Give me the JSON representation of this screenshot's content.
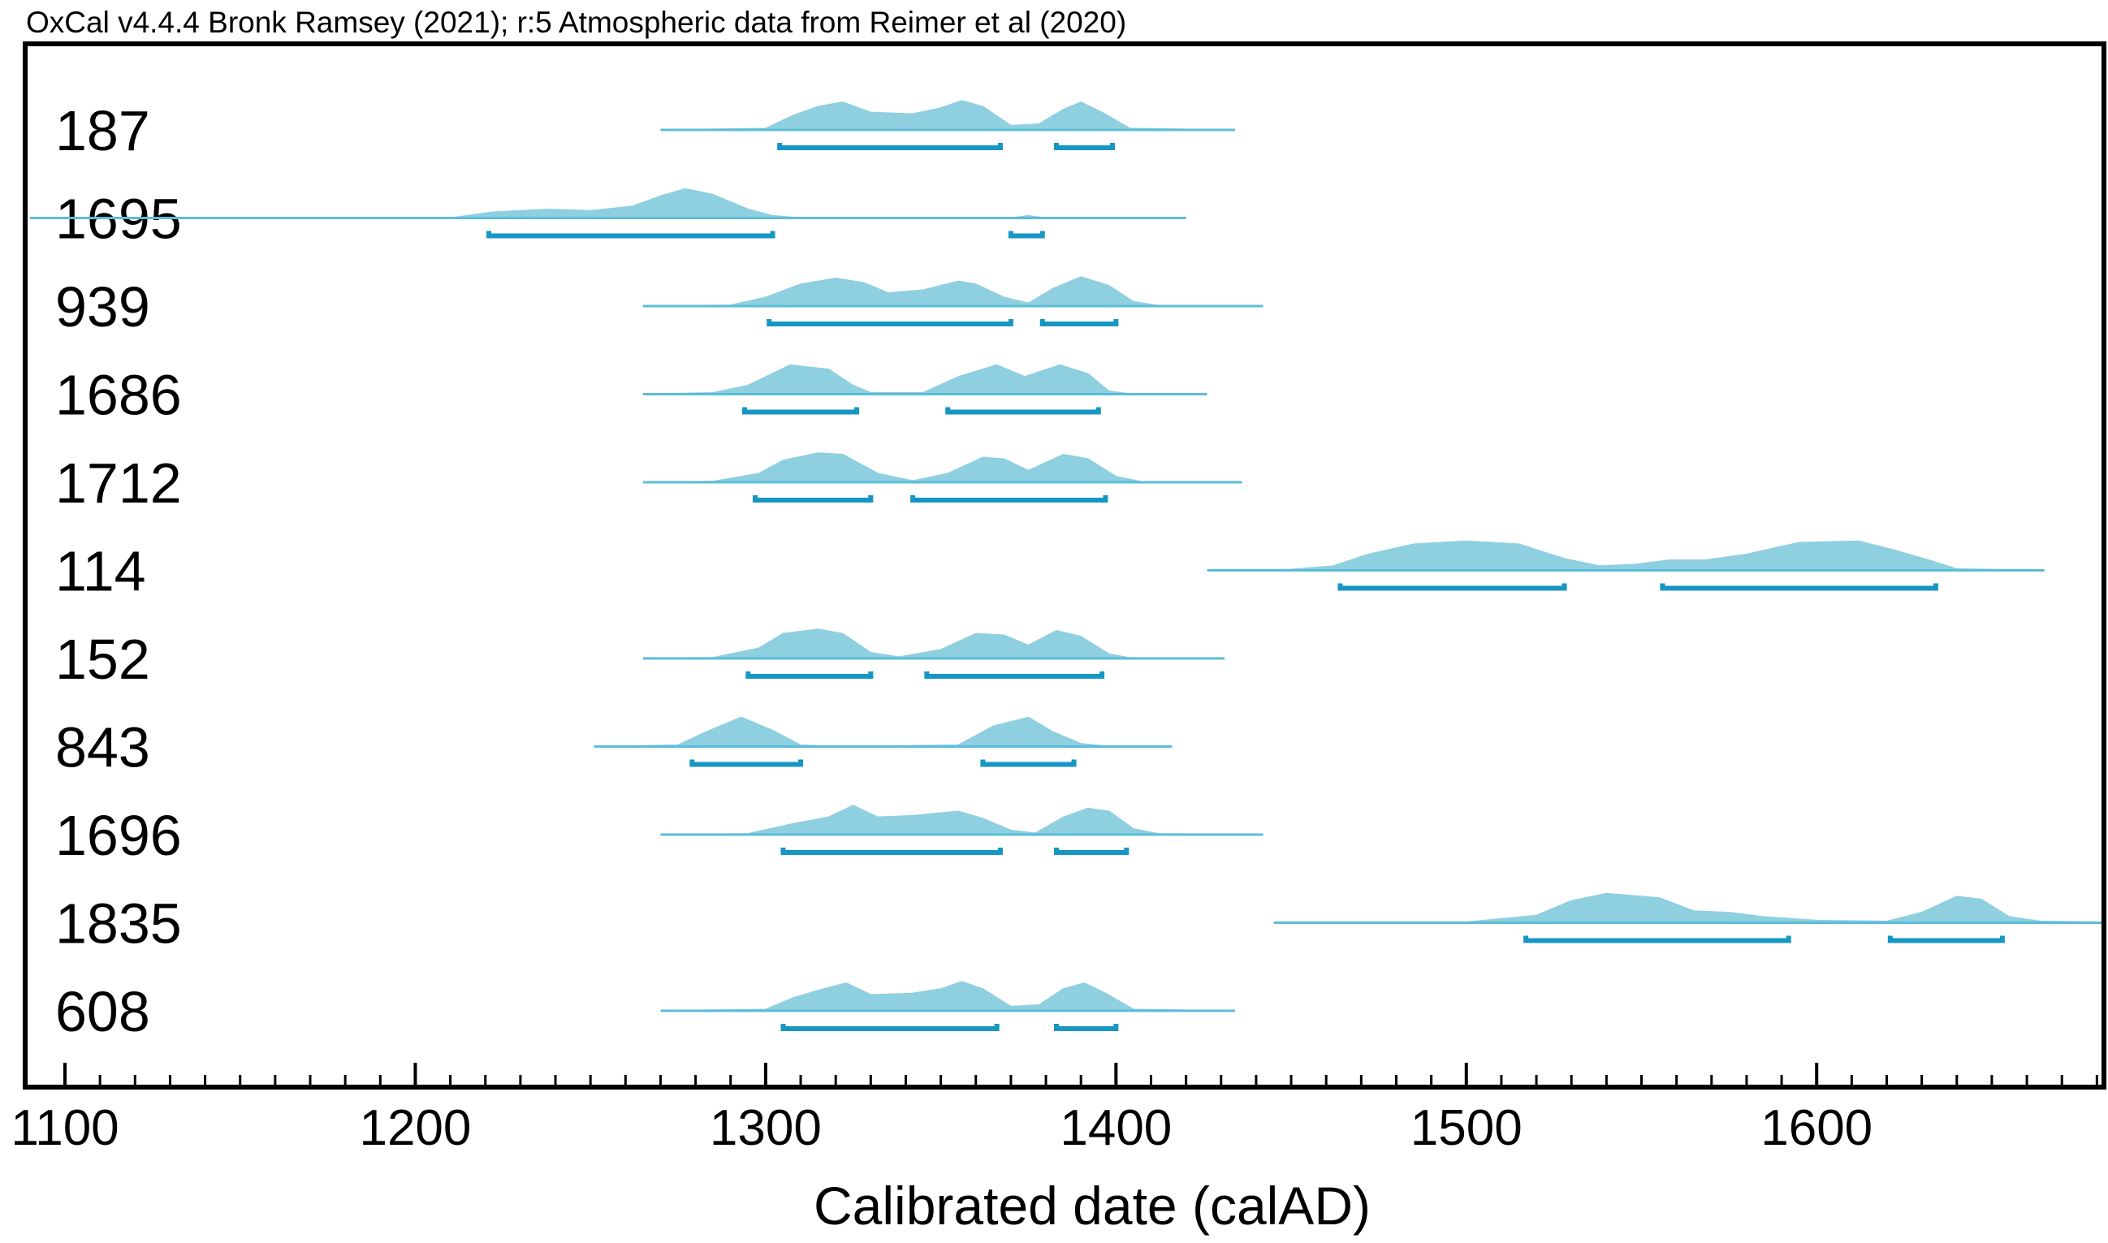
{
  "header": {
    "text": "OxCal v4.4.4 Bronk Ramsey (2021); r:5 Atmospheric data from Reimer et al (2020)"
  },
  "chart_data": {
    "type": "area",
    "title": "",
    "xlabel": "Calibrated date (calAD)",
    "ylabel": "",
    "xlim": [
      1090,
      1682
    ],
    "x_ticks": [
      1100,
      1200,
      1300,
      1400,
      1500,
      1600
    ],
    "grid": false,
    "colors": {
      "fill": "#8ecfe0",
      "line": "#5bbdd8",
      "range": "#1796c4",
      "frame": "#000000"
    },
    "series": [
      {
        "name": "187",
        "x_range": [
          1270,
          1434
        ],
        "density": [
          [
            1270,
            0
          ],
          [
            1300,
            0.05
          ],
          [
            1308,
            0.5
          ],
          [
            1315,
            0.8
          ],
          [
            1322,
            0.95
          ],
          [
            1330,
            0.6
          ],
          [
            1342,
            0.55
          ],
          [
            1350,
            0.75
          ],
          [
            1356,
            1.0
          ],
          [
            1362,
            0.8
          ],
          [
            1370,
            0.15
          ],
          [
            1378,
            0.2
          ],
          [
            1385,
            0.7
          ],
          [
            1390,
            0.95
          ],
          [
            1396,
            0.6
          ],
          [
            1404,
            0.05
          ],
          [
            1434,
            0
          ]
        ],
        "ranges": [
          [
            1304,
            1367
          ],
          [
            1383,
            1399
          ]
        ]
      },
      {
        "name": "1695",
        "x_range": [
          1090,
          1420
        ],
        "density": [
          [
            1090,
            0
          ],
          [
            1210,
            0
          ],
          [
            1222,
            0.2
          ],
          [
            1238,
            0.3
          ],
          [
            1250,
            0.25
          ],
          [
            1262,
            0.4
          ],
          [
            1270,
            0.75
          ],
          [
            1277,
            1.0
          ],
          [
            1285,
            0.8
          ],
          [
            1295,
            0.3
          ],
          [
            1302,
            0.08
          ],
          [
            1310,
            0
          ],
          [
            1370,
            0
          ],
          [
            1375,
            0.08
          ],
          [
            1380,
            0
          ],
          [
            1420,
            0
          ]
        ],
        "ranges": [
          [
            1221,
            1302
          ],
          [
            1370,
            1379
          ]
        ]
      },
      {
        "name": "939",
        "x_range": [
          1265,
          1442
        ],
        "density": [
          [
            1265,
            0
          ],
          [
            1290,
            0.03
          ],
          [
            1300,
            0.3
          ],
          [
            1310,
            0.75
          ],
          [
            1320,
            0.95
          ],
          [
            1328,
            0.8
          ],
          [
            1335,
            0.45
          ],
          [
            1345,
            0.55
          ],
          [
            1355,
            0.85
          ],
          [
            1360,
            0.75
          ],
          [
            1368,
            0.3
          ],
          [
            1375,
            0.1
          ],
          [
            1382,
            0.6
          ],
          [
            1390,
            1.0
          ],
          [
            1398,
            0.7
          ],
          [
            1405,
            0.15
          ],
          [
            1412,
            0.02
          ],
          [
            1442,
            0
          ]
        ],
        "ranges": [
          [
            1301,
            1370
          ],
          [
            1379,
            1400
          ]
        ]
      },
      {
        "name": "1686",
        "x_range": [
          1265,
          1426
        ],
        "density": [
          [
            1265,
            0
          ],
          [
            1285,
            0.05
          ],
          [
            1295,
            0.3
          ],
          [
            1307,
            1.0
          ],
          [
            1318,
            0.85
          ],
          [
            1325,
            0.3
          ],
          [
            1330,
            0.05
          ],
          [
            1345,
            0.05
          ],
          [
            1355,
            0.6
          ],
          [
            1366,
            1.0
          ],
          [
            1374,
            0.6
          ],
          [
            1384,
            1.0
          ],
          [
            1392,
            0.7
          ],
          [
            1398,
            0.1
          ],
          [
            1405,
            0
          ],
          [
            1426,
            0
          ]
        ],
        "ranges": [
          [
            1294,
            1326
          ],
          [
            1352,
            1395
          ]
        ]
      },
      {
        "name": "1712",
        "x_range": [
          1265,
          1436
        ],
        "density": [
          [
            1265,
            0
          ],
          [
            1285,
            0.03
          ],
          [
            1298,
            0.3
          ],
          [
            1305,
            0.75
          ],
          [
            1315,
            1.0
          ],
          [
            1322,
            0.95
          ],
          [
            1332,
            0.3
          ],
          [
            1342,
            0.05
          ],
          [
            1352,
            0.3
          ],
          [
            1362,
            0.85
          ],
          [
            1368,
            0.8
          ],
          [
            1375,
            0.4
          ],
          [
            1385,
            0.95
          ],
          [
            1392,
            0.8
          ],
          [
            1400,
            0.2
          ],
          [
            1408,
            0
          ],
          [
            1436,
            0
          ]
        ],
        "ranges": [
          [
            1297,
            1330
          ],
          [
            1342,
            1397
          ]
        ]
      },
      {
        "name": "114",
        "x_range": [
          1426,
          1665
        ],
        "density": [
          [
            1426,
            0
          ],
          [
            1450,
            0.03
          ],
          [
            1462,
            0.15
          ],
          [
            1472,
            0.55
          ],
          [
            1485,
            0.9
          ],
          [
            1500,
            1.0
          ],
          [
            1515,
            0.9
          ],
          [
            1528,
            0.4
          ],
          [
            1538,
            0.15
          ],
          [
            1548,
            0.2
          ],
          [
            1558,
            0.35
          ],
          [
            1568,
            0.35
          ],
          [
            1580,
            0.55
          ],
          [
            1595,
            0.95
          ],
          [
            1612,
            1.0
          ],
          [
            1622,
            0.7
          ],
          [
            1632,
            0.35
          ],
          [
            1640,
            0.05
          ],
          [
            1665,
            0
          ]
        ],
        "ranges": [
          [
            1464,
            1528
          ],
          [
            1556,
            1634
          ]
        ]
      },
      {
        "name": "152",
        "x_range": [
          1265,
          1431
        ],
        "density": [
          [
            1265,
            0
          ],
          [
            1285,
            0.03
          ],
          [
            1298,
            0.35
          ],
          [
            1305,
            0.85
          ],
          [
            1315,
            1.0
          ],
          [
            1322,
            0.85
          ],
          [
            1330,
            0.2
          ],
          [
            1338,
            0.05
          ],
          [
            1350,
            0.3
          ],
          [
            1360,
            0.85
          ],
          [
            1368,
            0.8
          ],
          [
            1375,
            0.45
          ],
          [
            1383,
            0.95
          ],
          [
            1390,
            0.75
          ],
          [
            1398,
            0.15
          ],
          [
            1405,
            0
          ],
          [
            1431,
            0
          ]
        ],
        "ranges": [
          [
            1295,
            1330
          ],
          [
            1346,
            1396
          ]
        ]
      },
      {
        "name": "843",
        "x_range": [
          1251,
          1416
        ],
        "density": [
          [
            1251,
            0
          ],
          [
            1275,
            0.05
          ],
          [
            1283,
            0.5
          ],
          [
            1293,
            1.0
          ],
          [
            1302,
            0.55
          ],
          [
            1310,
            0.05
          ],
          [
            1322,
            0
          ],
          [
            1355,
            0.05
          ],
          [
            1365,
            0.7
          ],
          [
            1375,
            1.0
          ],
          [
            1382,
            0.5
          ],
          [
            1390,
            0.1
          ],
          [
            1398,
            0
          ],
          [
            1416,
            0
          ]
        ],
        "ranges": [
          [
            1279,
            1310
          ],
          [
            1362,
            1388
          ]
        ]
      },
      {
        "name": "1696",
        "x_range": [
          1270,
          1442
        ],
        "density": [
          [
            1270,
            0
          ],
          [
            1295,
            0.03
          ],
          [
            1307,
            0.35
          ],
          [
            1318,
            0.6
          ],
          [
            1325,
            1.0
          ],
          [
            1332,
            0.6
          ],
          [
            1342,
            0.65
          ],
          [
            1355,
            0.8
          ],
          [
            1362,
            0.55
          ],
          [
            1370,
            0.15
          ],
          [
            1377,
            0.05
          ],
          [
            1385,
            0.6
          ],
          [
            1392,
            0.9
          ],
          [
            1398,
            0.8
          ],
          [
            1405,
            0.2
          ],
          [
            1412,
            0.03
          ],
          [
            1442,
            0
          ]
        ],
        "ranges": [
          [
            1305,
            1367
          ],
          [
            1383,
            1403
          ]
        ]
      },
      {
        "name": "1835",
        "x_range": [
          1445,
          1682
        ],
        "density": [
          [
            1445,
            0
          ],
          [
            1500,
            0.02
          ],
          [
            1520,
            0.25
          ],
          [
            1530,
            0.75
          ],
          [
            1540,
            1.0
          ],
          [
            1555,
            0.85
          ],
          [
            1565,
            0.4
          ],
          [
            1575,
            0.35
          ],
          [
            1585,
            0.2
          ],
          [
            1600,
            0.08
          ],
          [
            1620,
            0.05
          ],
          [
            1630,
            0.35
          ],
          [
            1640,
            0.9
          ],
          [
            1647,
            0.8
          ],
          [
            1655,
            0.2
          ],
          [
            1664,
            0.05
          ],
          [
            1682,
            0.02
          ]
        ],
        "ranges": [
          [
            1517,
            1592
          ],
          [
            1621,
            1653
          ]
        ]
      },
      {
        "name": "608",
        "x_range": [
          1270,
          1434
        ],
        "density": [
          [
            1270,
            0
          ],
          [
            1300,
            0.05
          ],
          [
            1308,
            0.45
          ],
          [
            1315,
            0.7
          ],
          [
            1323,
            0.95
          ],
          [
            1330,
            0.55
          ],
          [
            1342,
            0.6
          ],
          [
            1350,
            0.75
          ],
          [
            1356,
            1.0
          ],
          [
            1362,
            0.75
          ],
          [
            1370,
            0.15
          ],
          [
            1378,
            0.2
          ],
          [
            1385,
            0.75
          ],
          [
            1391,
            0.95
          ],
          [
            1397,
            0.6
          ],
          [
            1405,
            0.05
          ],
          [
            1434,
            0
          ]
        ],
        "ranges": [
          [
            1305,
            1366
          ],
          [
            1383,
            1400
          ]
        ]
      }
    ]
  }
}
